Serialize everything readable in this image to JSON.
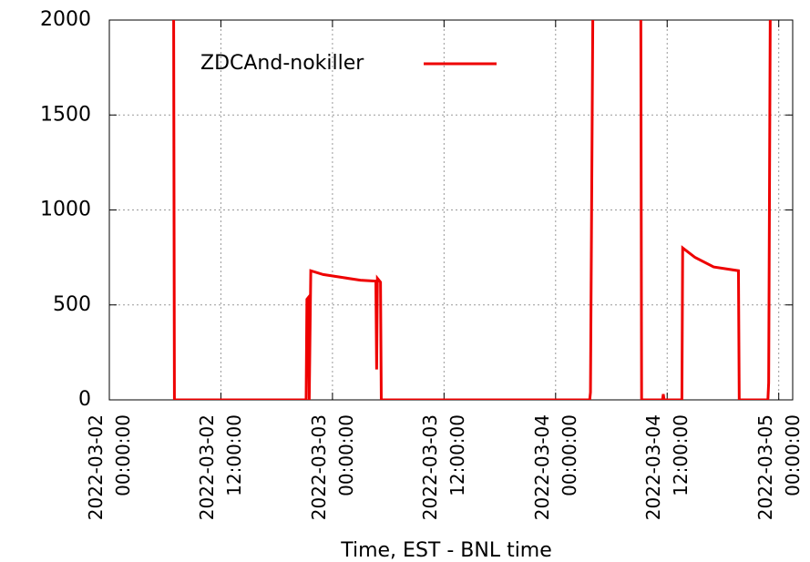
{
  "chart_data": {
    "type": "line",
    "xlabel": "Time, EST - BNL time",
    "x": [
      "2022-03-02 06:55:00",
      "2022-03-02 07:00:00",
      "2022-03-02 21:10:00",
      "2022-03-02 21:15:00",
      "2022-03-02 21:25:00",
      "2022-03-02 21:30:00",
      "2022-03-02 21:40:00",
      "2022-03-02 23:00:00",
      "2022-03-03 01:00:00",
      "2022-03-03 03:00:00",
      "2022-03-03 04:40:00",
      "2022-03-03 04:45:00",
      "2022-03-03 04:50:00",
      "2022-03-03 05:10:00",
      "2022-03-03 05:15:00",
      "2022-03-04 03:40:00",
      "2022-03-04 03:45:00",
      "2022-03-04 04:00:00",
      "2022-03-04 06:00:00",
      "2022-03-04 09:10:00",
      "2022-03-04 09:15:00",
      "2022-03-04 11:30:00",
      "2022-03-04 11:35:00",
      "2022-03-04 11:40:00",
      "2022-03-04 13:35:00",
      "2022-03-04 13:40:00",
      "2022-03-04 15:00:00",
      "2022-03-04 17:00:00",
      "2022-03-04 19:40:00",
      "2022-03-04 19:45:00",
      "2022-03-04 22:50:00",
      "2022-03-04 22:55:00",
      "2022-03-04 23:05:00"
    ],
    "series": [
      {
        "name": "ZDCAnd-nokiller",
        "color": "#ee0000",
        "values": [
          2000,
          0,
          0,
          530,
          540,
          0,
          680,
          660,
          645,
          630,
          625,
          160,
          640,
          620,
          0,
          0,
          40,
          2000,
          null,
          2000,
          0,
          0,
          30,
          0,
          0,
          800,
          750,
          700,
          680,
          0,
          0,
          90,
          2000
        ]
      }
    ],
    "xlim": [
      "2022-03-02 00:00:00",
      "2022-03-05 01:30:00"
    ],
    "xticks": [
      "2022-03-02 00:00:00",
      "2022-03-02 12:00:00",
      "2022-03-03 00:00:00",
      "2022-03-03 12:00:00",
      "2022-03-04 00:00:00",
      "2022-03-04 12:00:00",
      "2022-03-05 00:00:00"
    ],
    "ylim": [
      0,
      2000
    ],
    "yticks": [
      0,
      500,
      1000,
      1500,
      2000
    ],
    "grid": true,
    "legend": "top-left"
  }
}
